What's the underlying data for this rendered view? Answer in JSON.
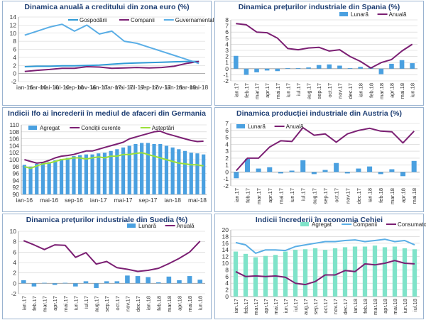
{
  "colors": {
    "title": "#1f3f74",
    "grid": "#cfcfcf",
    "axis": "#999999",
    "purple": "#7b1f73",
    "blue": "#2f9ad6",
    "lightblue": "#5aaee6",
    "green": "#9be03a",
    "mint": "#7fe3c9",
    "bar": "#4aa0e0"
  },
  "charts": [
    {
      "id": "c1",
      "title": "Dinamica anuală a creditului din zona euro  (%)",
      "chart_data": {
        "type": "line",
        "x": [
          "ian-16",
          "mar-16",
          "mai-16",
          "iul-16",
          "sep-16",
          "nov-16",
          "ian-17",
          "mar-17",
          "mai-17",
          "iul-17",
          "sep-17",
          "nov-17",
          "ian-18",
          "mar-18",
          "mai-18"
        ],
        "xticks": [
          "ian-16",
          "mar-16",
          "mai-16",
          "iul-16",
          "sep-16",
          "nov-16",
          "ian-17",
          "mar-17",
          "mai-17",
          "iul-17",
          "sep-17",
          "nov-17",
          "ian-18",
          "mar-18",
          "mai-18"
        ],
        "ylim": [
          -2,
          14
        ],
        "yticks": [
          -2,
          0,
          2,
          4,
          6,
          8,
          10,
          12,
          14
        ],
        "legend": [
          "Gospodării",
          "Companii",
          "Guvernamental"
        ],
        "series": [
          {
            "name": "Gospodării",
            "kind": "line",
            "color": "#2f9ad6",
            "values": [
              1.7,
              1.8,
              1.8,
              1.9,
              1.9,
              2.0,
              2.1,
              2.3,
              2.5,
              2.6,
              2.7,
              2.8,
              2.9,
              3.0,
              3.0
            ]
          },
          {
            "name": "Companii",
            "kind": "line",
            "color": "#7b1f73",
            "values": [
              0.5,
              0.8,
              1.0,
              1.3,
              1.3,
              1.7,
              1.6,
              1.3,
              1.4,
              1.5,
              1.4,
              1.5,
              1.8,
              2.5,
              3.0
            ]
          },
          {
            "name": "Guvernamental",
            "kind": "line",
            "color": "#5aaee6",
            "values": [
              9.5,
              10.5,
              11.5,
              12.2,
              10.5,
              12.0,
              9.8,
              10.5,
              8.0,
              7.5,
              6.5,
              5.5,
              4.5,
              3.5,
              2.5
            ]
          }
        ]
      }
    },
    {
      "id": "c2",
      "title": "Dinamica prețurilor industriale din Spania (%)",
      "chart_data": {
        "type": "bar-line",
        "x": [
          "ian.17",
          "feb.17",
          "mar.17",
          "apr.17",
          "mai.17",
          "iun.17",
          "iul.17",
          "aug.17",
          "sep.17",
          "oct.17",
          "nov.17",
          "dec.17",
          "ian.18",
          "feb.18",
          "mar.18",
          "apr.18",
          "mai.18",
          "iun.18"
        ],
        "xticks": [
          "ian.17",
          "feb.17",
          "mar.17",
          "apr.17",
          "mai.17",
          "iun.17",
          "iul.17",
          "aug.17",
          "sep.17",
          "oct.17",
          "nov.17",
          "dec.17",
          "ian.18",
          "feb.18",
          "mar.18",
          "apr.18",
          "mai.18",
          "iun.18"
        ],
        "ylim": [
          -2,
          8
        ],
        "yticks": [
          -2,
          -1,
          0,
          1,
          2,
          3,
          4,
          5,
          6,
          7,
          8
        ],
        "legend": [
          "Lunară",
          "Anuală"
        ],
        "series": [
          {
            "name": "Lunară",
            "kind": "bar",
            "color": "#4aa0e0",
            "values": [
              2.1,
              -1.0,
              -0.6,
              -0.3,
              -0.4,
              0.1,
              0.1,
              0.2,
              0.6,
              0.7,
              0.5,
              0.1,
              0.3,
              0.3,
              -0.9,
              0.8,
              1.4,
              0.9
            ]
          },
          {
            "name": "Anuală",
            "kind": "line",
            "color": "#7b1f73",
            "values": [
              7.4,
              7.2,
              6.0,
              5.9,
              5.0,
              3.3,
              3.1,
              3.4,
              3.5,
              2.9,
              3.1,
              2.0,
              1.2,
              0.1,
              1.0,
              1.5,
              2.9,
              4.0
            ]
          }
        ]
      }
    },
    {
      "id": "c3",
      "title": "Indicii Ifo ai încrederii în mediul de afaceri din Germania",
      "chart_data": {
        "type": "bar-line",
        "x": [
          "ian-16",
          "feb-16",
          "mar-16",
          "apr-16",
          "mai-16",
          "iun-16",
          "iul-16",
          "aug-16",
          "sep-16",
          "oct-16",
          "nov-16",
          "dec-16",
          "ian-17",
          "feb-17",
          "mar-17",
          "apr-17",
          "mai-17",
          "iun-17",
          "iul-17",
          "aug-17",
          "sep-17",
          "oct-17",
          "nov-17",
          "dec-17",
          "ian-18",
          "feb-18",
          "mar-18",
          "apr-18",
          "mai-18",
          "iun-18"
        ],
        "xticks": [
          "ian-16",
          "mai-16",
          "sep-16",
          "ian-17",
          "mai-17",
          "sep-17",
          "ian-18",
          "mai-18"
        ],
        "ylim": [
          90,
          110
        ],
        "yticks": [
          90,
          92,
          94,
          96,
          98,
          100,
          102,
          104,
          106,
          108,
          110
        ],
        "legend": [
          "Agregat",
          "Condiții curente",
          "Așteptări"
        ],
        "series": [
          {
            "name": "Agregat",
            "kind": "bar",
            "color": "#4aa0e0",
            "values": [
              98.5,
              98.0,
              98.8,
              99.0,
              99.3,
              99.8,
              100.2,
              100.5,
              101.0,
              101.3,
              101.5,
              101.5,
              101.8,
              102.0,
              102.5,
              103.0,
              103.5,
              104.0,
              104.5,
              104.8,
              104.8,
              104.5,
              104.5,
              104.0,
              103.5,
              103.0,
              102.5,
              102.0,
              101.8,
              101.5
            ]
          },
          {
            "name": "Condiții curente",
            "kind": "line",
            "color": "#7b1f73",
            "values": [
              100.0,
              99.5,
              99.0,
              99.2,
              99.8,
              100.5,
              101.0,
              101.2,
              101.5,
              102.0,
              102.5,
              102.5,
              103.0,
              103.5,
              104.0,
              104.5,
              105.0,
              106.0,
              106.5,
              107.0,
              107.5,
              108.0,
              108.2,
              107.5,
              107.0,
              106.5,
              106.0,
              105.5,
              105.2,
              105.3
            ]
          },
          {
            "name": "Așteptări",
            "kind": "line",
            "color": "#9be03a",
            "values": [
              98.0,
              97.5,
              98.2,
              98.8,
              99.0,
              99.5,
              100.0,
              100.2,
              100.5,
              100.5,
              100.2,
              100.5,
              100.8,
              100.5,
              101.0,
              101.0,
              101.5,
              101.5,
              101.8,
              102.0,
              101.5,
              101.0,
              100.5,
              100.0,
              99.5,
              99.0,
              98.8,
              98.5,
              98.5,
              98.2
            ]
          }
        ]
      }
    },
    {
      "id": "c4",
      "title": "Dinamica producției industriale din Austria (%)",
      "chart_data": {
        "type": "bar-line",
        "x": [
          "ian.17",
          "feb.17",
          "mar.17",
          "apr.17",
          "mai.17",
          "iun.17",
          "iul.17",
          "aug.17",
          "sep.17",
          "oct.17",
          "nov.17",
          "dec.17",
          "ian.18",
          "feb.18",
          "mar.18",
          "apr.18",
          "mai.18"
        ],
        "xticks": [
          "ian.17",
          "feb.17",
          "mar.17",
          "apr.17",
          "mai.17",
          "iun.17",
          "iul.17",
          "aug.17",
          "sep.17",
          "oct.17",
          "nov.17",
          "dec.17",
          "ian.18",
          "feb.18",
          "mar.18",
          "apr.18",
          "mai.18"
        ],
        "ylim": [
          -2,
          7
        ],
        "yticks": [
          -2,
          -1,
          0,
          1,
          2,
          3,
          4,
          5,
          6,
          7
        ],
        "legend": [
          "Lunară",
          "Anuală"
        ],
        "series": [
          {
            "name": "Lunară",
            "kind": "bar",
            "color": "#4aa0e0",
            "values": [
              -0.9,
              1.9,
              0.5,
              0.7,
              -0.2,
              0.2,
              1.7,
              -0.3,
              0.3,
              1.3,
              -0.2,
              0.5,
              0.8,
              -0.3,
              0.4,
              -0.6,
              1.6
            ]
          },
          {
            "name": "Anuală",
            "kind": "line",
            "color": "#7b1f73",
            "values": [
              0.2,
              2.0,
              2.0,
              3.6,
              4.5,
              4.4,
              6.4,
              5.3,
              5.5,
              4.3,
              5.5,
              6.0,
              6.3,
              5.9,
              5.8,
              4.2,
              5.9
            ]
          }
        ]
      }
    },
    {
      "id": "c5",
      "title": "Dinamica prețurilor industriale din Suedia (%)",
      "chart_data": {
        "type": "bar-line",
        "x": [
          "ian.17",
          "feb.17",
          "mar.17",
          "apr.17",
          "mai.17",
          "iun.17",
          "iul.17",
          "aug.17",
          "sep.17",
          "oct.17",
          "nov.17",
          "dec.17",
          "ian.18",
          "feb.18",
          "mar.18",
          "apr.18",
          "mai.18",
          "iun.18"
        ],
        "xticks": [
          "ian.17",
          "feb.17",
          "mar.17",
          "apr.17",
          "mai.17",
          "iun.17",
          "iul.17",
          "aug.17",
          "sep.17",
          "oct.17",
          "nov.17",
          "dec.17",
          "ian.18",
          "feb.18",
          "mar.18",
          "apr.18",
          "mai.18",
          "iun.18"
        ],
        "ylim": [
          -2,
          10
        ],
        "yticks": [
          -2,
          0,
          2,
          4,
          6,
          8,
          10
        ],
        "legend": [
          "Lunară",
          "Anuală"
        ],
        "series": [
          {
            "name": "Lunară",
            "kind": "bar",
            "color": "#4aa0e0",
            "values": [
              0.6,
              -0.6,
              0.1,
              -0.3,
              0.1,
              -0.6,
              0.4,
              -0.9,
              0.4,
              0.4,
              1.5,
              1.4,
              1.2,
              0.2,
              1.3,
              0.6,
              1.4,
              0.7
            ]
          },
          {
            "name": "Anuală",
            "kind": "line",
            "color": "#7b1f73",
            "values": [
              8.2,
              7.4,
              6.5,
              7.4,
              7.3,
              5.0,
              5.9,
              3.7,
              4.2,
              3.0,
              2.7,
              2.3,
              2.5,
              2.9,
              3.8,
              4.8,
              6.0,
              8.1
            ]
          }
        ]
      }
    },
    {
      "id": "c6",
      "title": "Indicii încrederii în economia Cehiei",
      "chart_data": {
        "type": "bar-line",
        "x": [
          "ian.17",
          "feb.17",
          "mar.17",
          "apr.17",
          "mai.17",
          "iun.17",
          "iul.17",
          "aug.17",
          "sep.17",
          "oct.17",
          "nov.17",
          "dec.17",
          "ian.18",
          "feb.18",
          "mar.18",
          "apr.18",
          "mai.18",
          "iun.18",
          "iul.18"
        ],
        "xticks": [
          "ian.17",
          "feb.17",
          "mar.17",
          "apr.17",
          "mai.17",
          "iun.17",
          "iul.17",
          "aug.17",
          "sep.17",
          "oct.17",
          "nov.17",
          "dec.17",
          "ian.18",
          "feb.18",
          "mar.18",
          "apr.18",
          "mai.18",
          "iun.18",
          "iul.18"
        ],
        "ylim": [
          0,
          20
        ],
        "yticks": [
          0,
          2,
          4,
          6,
          8,
          10,
          12,
          14,
          16,
          18,
          20
        ],
        "legend": [
          "Agregat",
          "Companii",
          "Consumatori"
        ],
        "series": [
          {
            "name": "Agregat",
            "kind": "bar",
            "color": "#7fe3c9",
            "values": [
              13.5,
              12.8,
              11.8,
              12.2,
              12.5,
              13.5,
              14.0,
              14.2,
              14.5,
              14.0,
              14.5,
              14.8,
              15.0,
              15.0,
              15.3,
              14.8,
              15.0,
              14.5,
              14.2
            ]
          },
          {
            "name": "Companii",
            "kind": "line",
            "color": "#5aaee6",
            "values": [
              16.2,
              15.5,
              13.0,
              14.0,
              14.0,
              13.8,
              15.0,
              15.5,
              16.0,
              16.5,
              16.5,
              16.8,
              17.0,
              16.5,
              16.8,
              17.2,
              16.5,
              16.8,
              15.5
            ]
          },
          {
            "name": "Consumatori",
            "kind": "line",
            "color": "#7b1f73",
            "values": [
              7.5,
              6.0,
              6.2,
              6.0,
              6.2,
              5.8,
              4.0,
              3.6,
              4.5,
              6.5,
              6.5,
              7.8,
              7.5,
              9.8,
              9.5,
              10.0,
              10.8,
              10.0,
              9.8
            ]
          }
        ]
      }
    }
  ]
}
